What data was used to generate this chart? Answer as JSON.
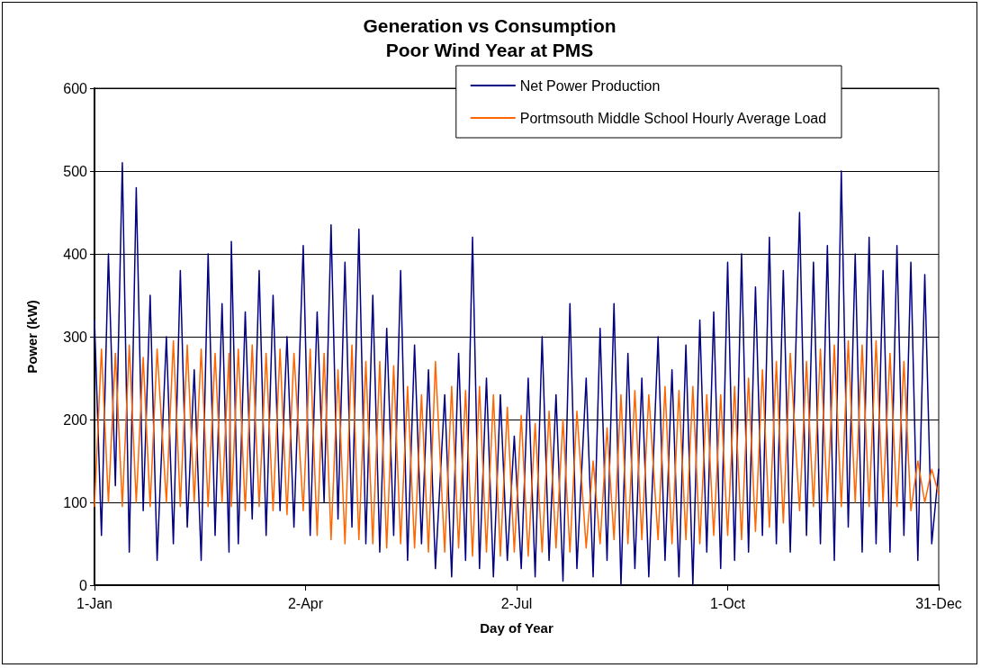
{
  "chart_data": {
    "type": "line",
    "title": "Generation vs Consumption",
    "subtitle": "Poor Wind Year at PMS",
    "xlabel": "Day of Year",
    "ylabel": "Power (kW)",
    "x": [
      "--01-01",
      "--01-04",
      "--01-07",
      "--01-10",
      "--01-13",
      "--01-16",
      "--01-19",
      "--01-22",
      "--01-25",
      "--01-28",
      "--02-01",
      "--02-04",
      "--02-07",
      "--02-10",
      "--02-13",
      "--02-16",
      "--02-19",
      "--02-22",
      "--02-25",
      "--02-28",
      "--03-01",
      "--03-04",
      "--03-07",
      "--03-10",
      "--03-13",
      "--03-16",
      "--03-19",
      "--03-22",
      "--03-25",
      "--03-28",
      "--04-01",
      "--04-04",
      "--04-07",
      "--04-10",
      "--04-13",
      "--04-16",
      "--04-19",
      "--04-22",
      "--04-25",
      "--04-28",
      "--05-01",
      "--05-04",
      "--05-07",
      "--05-10",
      "--05-13",
      "--05-16",
      "--05-19",
      "--05-22",
      "--05-25",
      "--05-28",
      "--06-01",
      "--06-04",
      "--06-07",
      "--06-10",
      "--06-13",
      "--06-16",
      "--06-19",
      "--06-22",
      "--06-25",
      "--06-28",
      "--07-01",
      "--07-04",
      "--07-07",
      "--07-10",
      "--07-13",
      "--07-16",
      "--07-19",
      "--07-22",
      "--07-25",
      "--07-28",
      "--08-01",
      "--08-04",
      "--08-07",
      "--08-10",
      "--08-13",
      "--08-16",
      "--08-19",
      "--08-22",
      "--08-25",
      "--08-28",
      "--09-01",
      "--09-04",
      "--09-07",
      "--09-10",
      "--09-13",
      "--09-16",
      "--09-19",
      "--09-22",
      "--09-25",
      "--09-28",
      "--10-01",
      "--10-04",
      "--10-07",
      "--10-10",
      "--10-13",
      "--10-16",
      "--10-19",
      "--10-22",
      "--10-25",
      "--10-28",
      "--11-01",
      "--11-04",
      "--11-07",
      "--11-10",
      "--11-13",
      "--11-16",
      "--11-19",
      "--11-22",
      "--11-25",
      "--11-28",
      "--12-01",
      "--12-04",
      "--12-07",
      "--12-10",
      "--12-13",
      "--12-16",
      "--12-19",
      "--12-22",
      "--12-25",
      "--12-28",
      "--12-31"
    ],
    "series": [
      {
        "name": "Net Power Production",
        "color": "#000080",
        "values": [
          320,
          60,
          400,
          120,
          510,
          40,
          480,
          90,
          350,
          30,
          300,
          50,
          380,
          70,
          260,
          30,
          400,
          60,
          340,
          40,
          415,
          50,
          330,
          80,
          380,
          60,
          350,
          90,
          300,
          70,
          410,
          60,
          330,
          100,
          435,
          80,
          390,
          70,
          430,
          50,
          350,
          40,
          310,
          60,
          380,
          30,
          290,
          50,
          260,
          20,
          230,
          10,
          280,
          30,
          420,
          20,
          250,
          10,
          230,
          30,
          180,
          20,
          250,
          10,
          300,
          30,
          230,
          5,
          340,
          20,
          250,
          10,
          310,
          30,
          340,
          0,
          280,
          20,
          250,
          10,
          300,
          30,
          260,
          10,
          290,
          0,
          320,
          40,
          330,
          20,
          390,
          30,
          400,
          40,
          360,
          60,
          420,
          50,
          380,
          40,
          450,
          60,
          390,
          50,
          410,
          30,
          500,
          70,
          400,
          40,
          420,
          50,
          380,
          40,
          410,
          60,
          390,
          30,
          375,
          50,
          140
        ]
      },
      {
        "name": "Portmsouth Middle School Hourly Average Load",
        "color": "#ff6600",
        "values": [
          95,
          285,
          100,
          280,
          95,
          290,
          100,
          275,
          95,
          285,
          100,
          295,
          95,
          290,
          100,
          285,
          95,
          280,
          100,
          280,
          95,
          285,
          90,
          290,
          95,
          280,
          90,
          285,
          85,
          280,
          90,
          285,
          60,
          280,
          55,
          260,
          50,
          290,
          55,
          270,
          50,
          270,
          45,
          265,
          50,
          240,
          45,
          230,
          40,
          270,
          40,
          240,
          45,
          235,
          35,
          240,
          40,
          230,
          35,
          215,
          40,
          205,
          35,
          195,
          40,
          210,
          45,
          200,
          40,
          210,
          45,
          150,
          50,
          190,
          55,
          230,
          50,
          235,
          55,
          230,
          55,
          240,
          50,
          235,
          55,
          240,
          50,
          230,
          60,
          230,
          60,
          240,
          55,
          250,
          65,
          260,
          70,
          270,
          75,
          280,
          90,
          270,
          95,
          285,
          100,
          290,
          95,
          295,
          100,
          290,
          95,
          295,
          100,
          280,
          95,
          270,
          90,
          150,
          100,
          140,
          110
        ]
      }
    ],
    "xlim": [
      "--01-01",
      "--12-31"
    ],
    "xticks": [
      {
        "value": "--01-01",
        "label": "1-Jan"
      },
      {
        "value": "--04-02",
        "label": "2-Apr"
      },
      {
        "value": "--07-02",
        "label": "2-Jul"
      },
      {
        "value": "--10-01",
        "label": "1-Oct"
      },
      {
        "value": "--12-31",
        "label": "31-Dec"
      }
    ],
    "ylim": [
      0,
      600
    ],
    "yticks": [
      0,
      100,
      200,
      300,
      400,
      500,
      600
    ],
    "grid": "y",
    "legend": "top right",
    "marker": "none",
    "line_style": "solid"
  }
}
